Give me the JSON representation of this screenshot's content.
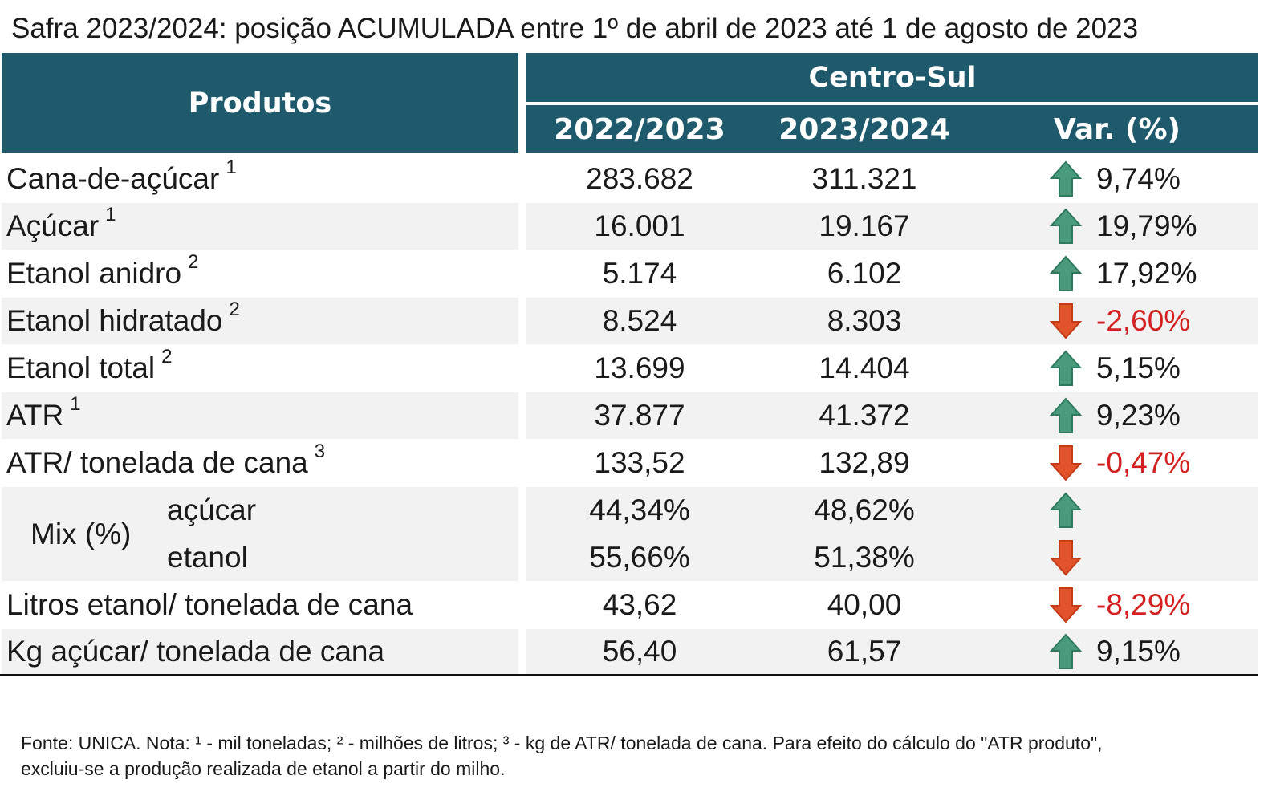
{
  "title": "Safra 2023/2024: posição ACUMULADA entre 1º de abril de 2023 até 1 de agosto de 2023",
  "header": {
    "produtos": "Produtos",
    "region": "Centro-Sul",
    "year1": "2022/2023",
    "year2": "2023/2024",
    "variation": "Var. (%)"
  },
  "colors": {
    "header_bg": "#1f5a6c",
    "up_arrow": "#4a9a7c",
    "down_arrow": "#e2522b",
    "negative_text": "#d32020"
  },
  "rows": [
    {
      "name": "Cana-de-açúcar",
      "sup": "1",
      "y1": "283.682",
      "y2": "311.321",
      "trend": "up",
      "var": "9,74%"
    },
    {
      "name": "Açúcar",
      "sup": "1",
      "y1": "16.001",
      "y2": "19.167",
      "trend": "up",
      "var": "19,79%"
    },
    {
      "name": "Etanol anidro",
      "sup": "2",
      "y1": "5.174",
      "y2": "6.102",
      "trend": "up",
      "var": "17,92%"
    },
    {
      "name": "Etanol hidratado",
      "sup": "2",
      "y1": "8.524",
      "y2": "8.303",
      "trend": "down",
      "var": "-2,60%"
    },
    {
      "name": "Etanol total",
      "sup": "2",
      "y1": "13.699",
      "y2": "14.404",
      "trend": "up",
      "var": "5,15%"
    },
    {
      "name": "ATR",
      "sup": "1",
      "y1": "37.877",
      "y2": "41.372",
      "trend": "up",
      "var": "9,23%"
    },
    {
      "name": "ATR/ tonelada de cana",
      "sup": "3",
      "y1": "133,52",
      "y2": "132,89",
      "trend": "down",
      "var": "-0,47%"
    }
  ],
  "mix": {
    "label": "Mix (%)",
    "acucar": {
      "name": "açúcar",
      "y1": "44,34%",
      "y2": "48,62%",
      "trend": "up"
    },
    "etanol": {
      "name": "etanol",
      "y1": "55,66%",
      "y2": "51,38%",
      "trend": "down"
    }
  },
  "rows_after": [
    {
      "name": "Litros etanol/ tonelada de cana",
      "y1": "43,62",
      "y2": "40,00",
      "trend": "down",
      "var": "-8,29%"
    },
    {
      "name": "Kg açúcar/ tonelada de cana",
      "y1": "56,40",
      "y2": "61,57",
      "trend": "up",
      "var": "9,15%"
    }
  ],
  "footer": {
    "line1": "Fonte: UNICA. Nota: ¹ - mil toneladas; ² - milhões de litros; ³ - kg de ATR/ tonelada de cana. Para efeito do cálculo do \"ATR produto\",",
    "line2": "excluiu-se a produção realizada de etanol a partir do milho."
  }
}
